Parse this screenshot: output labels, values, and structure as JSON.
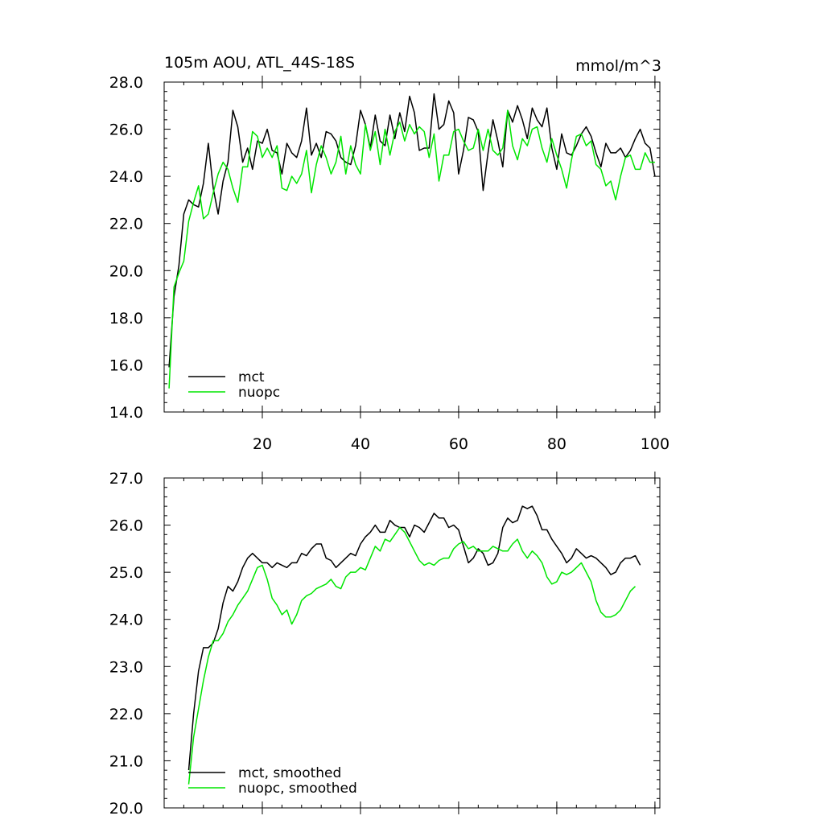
{
  "figure": {
    "title_left": "105m AOU, ATL_44S-18S",
    "title_right": "mmol/m^3"
  },
  "colors": {
    "mct": "#000000",
    "nuopc": "#00e600",
    "axis": "#000000",
    "background": "#ffffff"
  },
  "chart_data": [
    {
      "type": "line",
      "title": "105m AOU, ATL_44S-18S",
      "units_label": "mmol/m^3",
      "xlim": [
        0,
        101
      ],
      "ylim": [
        14,
        28
      ],
      "y_ticks": [
        14,
        16,
        18,
        20,
        22,
        24,
        26,
        28
      ],
      "y_tick_labels": [
        "14.0",
        "16.0",
        "18.0",
        "20.0",
        "22.0",
        "24.0",
        "26.0",
        "28.0"
      ],
      "x_ticks": [
        20,
        40,
        60,
        80,
        100
      ],
      "x_tick_labels": [
        "20",
        "40",
        "60",
        "80",
        "100"
      ],
      "legend_position": "bottom-left",
      "grid": false,
      "x_start": 1,
      "series": [
        {
          "name": "mct",
          "color": "#000000",
          "values": [
            15.9,
            18.9,
            20.2,
            22.4,
            23.0,
            22.8,
            22.7,
            23.7,
            25.4,
            23.5,
            22.4,
            23.8,
            24.6,
            26.8,
            26.1,
            24.6,
            25.2,
            24.3,
            25.5,
            25.4,
            26.0,
            25.1,
            25.0,
            24.1,
            25.4,
            25.0,
            24.8,
            25.5,
            26.9,
            24.9,
            25.4,
            24.8,
            25.9,
            25.8,
            25.5,
            24.8,
            24.6,
            24.5,
            25.3,
            26.8,
            26.2,
            25.2,
            26.6,
            25.5,
            25.3,
            26.6,
            25.6,
            26.7,
            25.9,
            27.4,
            26.7,
            25.1,
            25.2,
            25.2,
            27.5,
            26.0,
            26.2,
            27.2,
            26.7,
            24.1,
            25.1,
            26.5,
            26.4,
            25.9,
            23.4,
            25.0,
            26.4,
            25.5,
            24.4,
            26.8,
            26.3,
            27.0,
            26.4,
            25.6,
            26.9,
            26.4,
            26.1,
            26.9,
            25.2,
            24.3,
            25.8,
            25.0,
            24.9,
            25.3,
            25.8,
            26.1,
            25.7,
            25.0,
            24.4,
            25.4,
            25.0,
            25.0,
            25.2,
            24.8,
            25.1,
            25.6,
            26.0,
            25.4,
            25.2,
            24.0
          ]
        },
        {
          "name": "nuopc",
          "color": "#00e600",
          "values": [
            15.0,
            19.3,
            19.9,
            20.4,
            22.1,
            22.9,
            23.6,
            22.2,
            22.4,
            23.3,
            24.1,
            24.6,
            24.3,
            23.5,
            22.9,
            24.4,
            24.4,
            25.9,
            25.7,
            24.8,
            25.2,
            24.8,
            25.3,
            23.5,
            23.4,
            24.0,
            23.7,
            24.1,
            25.1,
            23.3,
            24.5,
            25.3,
            24.8,
            24.1,
            24.6,
            25.7,
            24.1,
            25.3,
            24.5,
            24.1,
            26.2,
            25.1,
            25.9,
            24.5,
            26.0,
            24.9,
            25.9,
            26.3,
            25.5,
            26.2,
            25.8,
            26.1,
            25.9,
            24.8,
            25.8,
            23.8,
            24.9,
            24.9,
            25.9,
            26.0,
            25.5,
            25.1,
            25.2,
            26.0,
            25.1,
            26.0,
            25.1,
            24.9,
            25.2,
            26.8,
            25.3,
            24.7,
            25.6,
            25.3,
            26.0,
            26.1,
            25.2,
            24.6,
            25.6,
            24.9,
            24.3,
            23.5,
            24.7,
            25.7,
            25.8,
            25.3,
            25.5,
            24.5,
            24.3,
            23.6,
            23.8,
            23.0,
            24.0,
            24.8,
            24.9,
            24.3,
            24.3,
            25.0,
            24.6,
            24.6
          ]
        }
      ]
    },
    {
      "type": "line",
      "xlim": [
        0,
        101
      ],
      "ylim": [
        20,
        27
      ],
      "y_ticks": [
        20,
        21,
        22,
        23,
        24,
        25,
        26,
        27
      ],
      "y_tick_labels": [
        "20.0",
        "21.0",
        "22.0",
        "23.0",
        "24.0",
        "25.0",
        "26.0",
        "27.0"
      ],
      "x_ticks": [
        20,
        40,
        60,
        80,
        100
      ],
      "x_tick_labels": [],
      "legend_position": "bottom-left",
      "grid": false,
      "x_start": 5,
      "series": [
        {
          "name": "mct, smoothed",
          "color": "#000000",
          "values": [
            20.8,
            22.0,
            22.9,
            23.4,
            23.4,
            23.5,
            23.8,
            24.35,
            24.7,
            24.6,
            24.8,
            25.1,
            25.3,
            25.4,
            25.3,
            25.2,
            25.2,
            25.1,
            25.2,
            25.15,
            25.1,
            25.2,
            25.2,
            25.4,
            25.35,
            25.5,
            25.6,
            25.6,
            25.3,
            25.25,
            25.1,
            25.2,
            25.3,
            25.4,
            25.35,
            25.6,
            25.75,
            25.85,
            26.0,
            25.85,
            25.85,
            26.1,
            26.0,
            25.95,
            25.95,
            25.75,
            26.0,
            25.95,
            25.85,
            26.05,
            26.25,
            26.15,
            26.15,
            25.95,
            26.0,
            25.9,
            25.55,
            25.2,
            25.3,
            25.5,
            25.4,
            25.15,
            25.2,
            25.4,
            25.95,
            26.15,
            26.05,
            26.1,
            26.4,
            26.35,
            26.4,
            26.2,
            25.9,
            25.9,
            25.7,
            25.55,
            25.4,
            25.2,
            25.3,
            25.5,
            25.4,
            25.3,
            25.35,
            25.3,
            25.2,
            25.1,
            24.95,
            25.0,
            25.2,
            25.3,
            25.3,
            25.35,
            25.15
          ]
        },
        {
          "name": "nuopc, smoothed",
          "color": "#00e600",
          "values": [
            20.5,
            21.5,
            22.1,
            22.7,
            23.2,
            23.55,
            23.55,
            23.7,
            23.95,
            24.1,
            24.3,
            24.45,
            24.6,
            24.85,
            25.1,
            25.15,
            24.85,
            24.45,
            24.3,
            24.1,
            24.2,
            23.9,
            24.1,
            24.4,
            24.5,
            24.55,
            24.65,
            24.7,
            24.75,
            24.85,
            24.7,
            24.65,
            24.9,
            25.0,
            25.0,
            25.1,
            25.05,
            25.3,
            25.55,
            25.45,
            25.7,
            25.65,
            25.8,
            25.95,
            25.85,
            25.65,
            25.45,
            25.25,
            25.15,
            25.2,
            25.15,
            25.25,
            25.3,
            25.3,
            25.5,
            25.6,
            25.65,
            25.5,
            25.55,
            25.45,
            25.45,
            25.45,
            25.55,
            25.5,
            25.45,
            25.45,
            25.6,
            25.7,
            25.45,
            25.3,
            25.45,
            25.35,
            25.2,
            24.9,
            24.75,
            24.8,
            25.0,
            24.95,
            25.0,
            25.1,
            25.2,
            25.0,
            24.8,
            24.4,
            24.15,
            24.05,
            24.05,
            24.1,
            24.2,
            24.4,
            24.6,
            24.7
          ]
        }
      ]
    }
  ]
}
